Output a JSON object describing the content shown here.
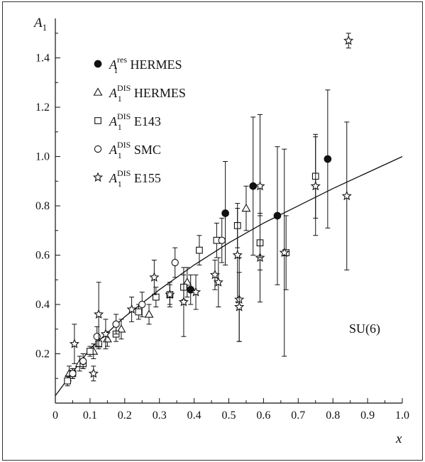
{
  "chart_data": {
    "type": "scatter",
    "xlabel": "x",
    "ylabel": "A",
    "ylabel_sub": "1",
    "xlim": [
      0,
      1.0
    ],
    "ylim": [
      0,
      1.56
    ],
    "xticks": [
      "0",
      "0.1",
      "0.2",
      "0.3",
      "0.4",
      "0.5",
      "0.6",
      "0.7",
      "0.8",
      "0.9",
      "1.0"
    ],
    "yticks": [
      "0.2",
      "0.4",
      "0.6",
      "0.8",
      "1.0",
      "1.2",
      "1.4"
    ],
    "grid": false,
    "legend_position": "top-left",
    "annotation": "SU(6)",
    "curve": {
      "name": "SU(6)",
      "x": [
        0.0,
        0.1,
        0.2,
        0.3,
        0.4,
        0.5,
        0.6,
        0.7,
        0.8,
        0.9,
        1.0
      ],
      "y": [
        0.03,
        0.22,
        0.35,
        0.46,
        0.56,
        0.65,
        0.73,
        0.8,
        0.87,
        0.935,
        1.0
      ]
    },
    "series": [
      {
        "name": "HERMES",
        "sup": "res",
        "marker": "filled-circle",
        "points": [
          {
            "x": 0.39,
            "y": 0.46,
            "err": 0.06
          },
          {
            "x": 0.49,
            "y": 0.77,
            "err": 0.21
          },
          {
            "x": 0.57,
            "y": 0.88,
            "err": 0.28
          },
          {
            "x": 0.64,
            "y": 0.76,
            "err": 0.28
          },
          {
            "x": 0.785,
            "y": 0.99,
            "err": 0.28
          }
        ]
      },
      {
        "name": "HERMES",
        "sup": "DIS",
        "marker": "open-triangle",
        "points": [
          {
            "x": 0.04,
            "y": 0.12,
            "err": 0.03
          },
          {
            "x": 0.07,
            "y": 0.16,
            "err": 0.03
          },
          {
            "x": 0.11,
            "y": 0.21,
            "err": 0.03
          },
          {
            "x": 0.15,
            "y": 0.26,
            "err": 0.03
          },
          {
            "x": 0.19,
            "y": 0.3,
            "err": 0.04
          },
          {
            "x": 0.27,
            "y": 0.36,
            "err": 0.04
          },
          {
            "x": 0.38,
            "y": 0.49,
            "err": 0.06
          },
          {
            "x": 0.55,
            "y": 0.79,
            "err": 0.09
          }
        ]
      },
      {
        "name": "E143",
        "sup": "DIS",
        "marker": "open-square",
        "points": [
          {
            "x": 0.035,
            "y": 0.09,
            "err": 0.02
          },
          {
            "x": 0.05,
            "y": 0.12,
            "err": 0.02
          },
          {
            "x": 0.08,
            "y": 0.16,
            "err": 0.02
          },
          {
            "x": 0.1,
            "y": 0.21,
            "err": 0.02
          },
          {
            "x": 0.125,
            "y": 0.24,
            "err": 0.02
          },
          {
            "x": 0.175,
            "y": 0.28,
            "err": 0.03
          },
          {
            "x": 0.24,
            "y": 0.37,
            "err": 0.03
          },
          {
            "x": 0.29,
            "y": 0.43,
            "err": 0.04
          },
          {
            "x": 0.33,
            "y": 0.44,
            "err": 0.04
          },
          {
            "x": 0.37,
            "y": 0.47,
            "err": 0.05
          },
          {
            "x": 0.415,
            "y": 0.62,
            "err": 0.06
          },
          {
            "x": 0.465,
            "y": 0.66,
            "err": 0.07
          },
          {
            "x": 0.525,
            "y": 0.72,
            "err": 0.09
          },
          {
            "x": 0.59,
            "y": 0.65,
            "err": 0.11
          },
          {
            "x": 0.665,
            "y": 0.61,
            "err": 0.15
          },
          {
            "x": 0.75,
            "y": 0.92,
            "err": 0.17
          }
        ]
      },
      {
        "name": "SMC",
        "sup": "DIS",
        "marker": "open-circle",
        "points": [
          {
            "x": 0.05,
            "y": 0.12,
            "err": 0.02
          },
          {
            "x": 0.08,
            "y": 0.17,
            "err": 0.03
          },
          {
            "x": 0.12,
            "y": 0.27,
            "err": 0.04
          },
          {
            "x": 0.175,
            "y": 0.32,
            "err": 0.04
          },
          {
            "x": 0.25,
            "y": 0.4,
            "err": 0.05
          },
          {
            "x": 0.345,
            "y": 0.57,
            "err": 0.06
          },
          {
            "x": 0.48,
            "y": 0.66,
            "err": 0.09
          }
        ]
      },
      {
        "name": "E155",
        "sup": "DIS",
        "marker": "open-star",
        "points": [
          {
            "x": 0.055,
            "y": 0.24,
            "err": 0.08
          },
          {
            "x": 0.11,
            "y": 0.12,
            "err": 0.03
          },
          {
            "x": 0.125,
            "y": 0.36,
            "err": 0.13
          },
          {
            "x": 0.145,
            "y": 0.28,
            "err": 0.06
          },
          {
            "x": 0.22,
            "y": 0.38,
            "err": 0.05
          },
          {
            "x": 0.285,
            "y": 0.51,
            "err": 0.07
          },
          {
            "x": 0.33,
            "y": 0.44,
            "err": 0.05
          },
          {
            "x": 0.37,
            "y": 0.41,
            "err": 0.14
          },
          {
            "x": 0.405,
            "y": 0.45,
            "err": 0.07
          },
          {
            "x": 0.46,
            "y": 0.52,
            "err": 0.06
          },
          {
            "x": 0.47,
            "y": 0.49,
            "err": 0.1
          },
          {
            "x": 0.525,
            "y": 0.6,
            "err": 0.19
          },
          {
            "x": 0.53,
            "y": 0.42,
            "err": 0.17
          },
          {
            "x": 0.53,
            "y": 0.39,
            "err": 0.14
          },
          {
            "x": 0.59,
            "y": 0.59,
            "err": 0.18
          },
          {
            "x": 0.59,
            "y": 0.88,
            "err": 0.29
          },
          {
            "x": 0.66,
            "y": 0.61,
            "err": 0.42
          },
          {
            "x": 0.75,
            "y": 0.88,
            "err": 0.2
          },
          {
            "x": 0.84,
            "y": 0.84,
            "err": 0.3
          },
          {
            "x": 0.845,
            "y": 1.47,
            "err": 0.03
          }
        ]
      }
    ]
  }
}
